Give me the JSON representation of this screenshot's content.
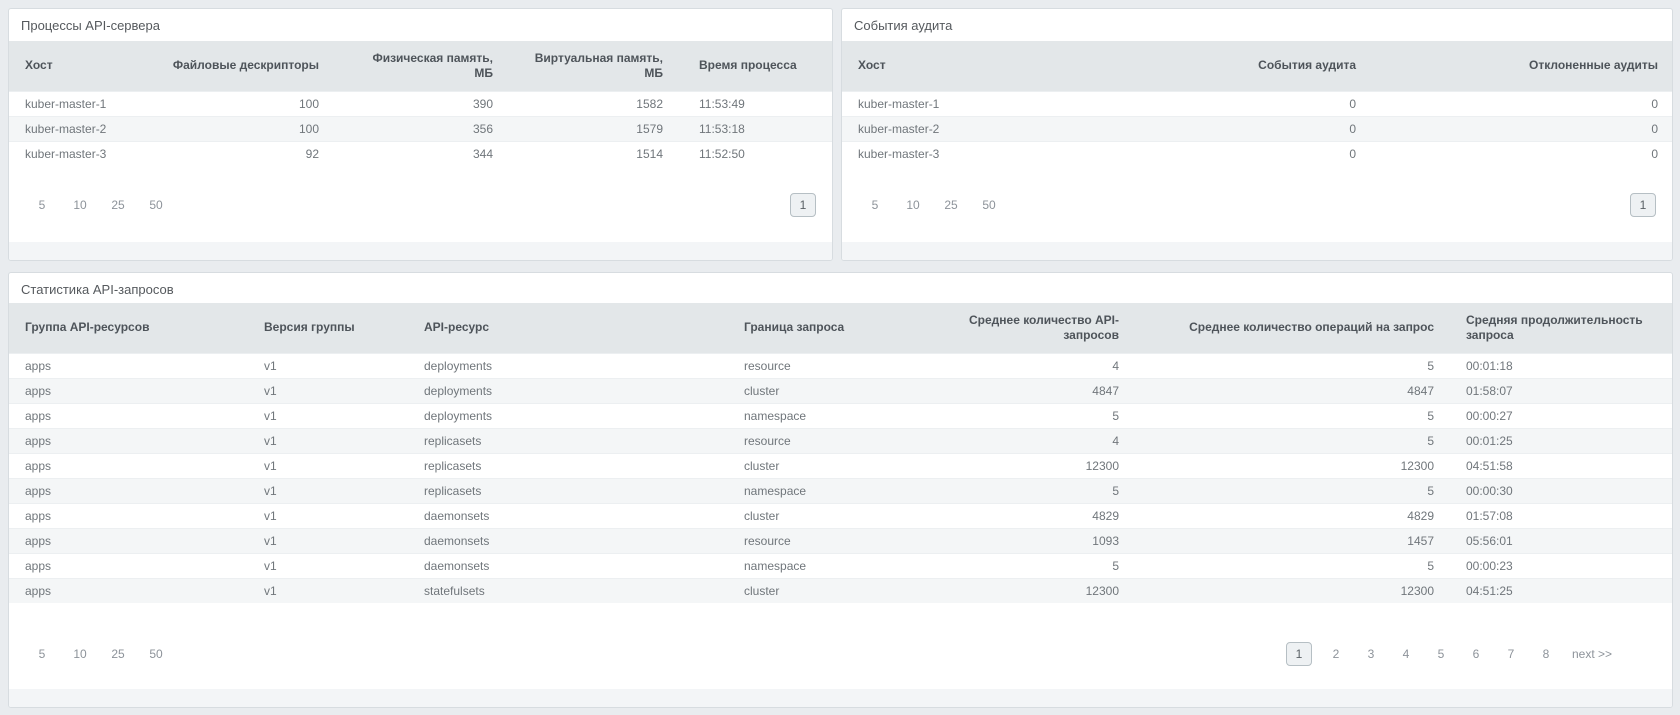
{
  "colors": {
    "page_background": "#e9ecef",
    "panel_background": "#ffffff",
    "panel_border": "#d7dce0",
    "table_header_background": "#e3e7e9",
    "row_stripe": "#f4f6f7",
    "header_text": "#4e545a",
    "cell_text": "#70767b",
    "muted_text": "#8d939a"
  },
  "panels": {
    "processes": {
      "title": "Процессы API-сервера",
      "columns": [
        "Хост",
        "Файловые дескрипторы",
        "Физическая память,\nМБ",
        "Виртуальная память,\nМБ",
        "Время процесса"
      ],
      "rows": [
        [
          "kuber-master-1",
          "100",
          "390",
          "1582",
          "11:53:49"
        ],
        [
          "kuber-master-2",
          "100",
          "356",
          "1579",
          "11:53:18"
        ],
        [
          "kuber-master-3",
          "92",
          "344",
          "1514",
          "11:52:50"
        ]
      ],
      "page_sizes": [
        "5",
        "10",
        "25",
        "50"
      ],
      "current_page": "1"
    },
    "audit": {
      "title": "События аудита",
      "columns": [
        "Хост",
        "События аудита",
        "Отклоненные аудиты"
      ],
      "rows": [
        [
          "kuber-master-1",
          "0",
          "0"
        ],
        [
          "kuber-master-2",
          "0",
          "0"
        ],
        [
          "kuber-master-3",
          "0",
          "0"
        ]
      ],
      "page_sizes": [
        "5",
        "10",
        "25",
        "50"
      ],
      "current_page": "1"
    },
    "api_stats": {
      "title": "Статистика API-запросов",
      "columns": [
        "Группа API-ресурсов",
        "Версия группы",
        "API-ресурс",
        "Граница запроса",
        "Среднее количество API-\nзапросов",
        "Среднее количество операций на запрос",
        "Средняя продолжительность\nзапроса"
      ],
      "rows": [
        [
          "apps",
          "v1",
          "deployments",
          "resource",
          "4",
          "5",
          "00:01:18"
        ],
        [
          "apps",
          "v1",
          "deployments",
          "cluster",
          "4847",
          "4847",
          "01:58:07"
        ],
        [
          "apps",
          "v1",
          "deployments",
          "namespace",
          "5",
          "5",
          "00:00:27"
        ],
        [
          "apps",
          "v1",
          "replicasets",
          "resource",
          "4",
          "5",
          "00:01:25"
        ],
        [
          "apps",
          "v1",
          "replicasets",
          "cluster",
          "12300",
          "12300",
          "04:51:58"
        ],
        [
          "apps",
          "v1",
          "replicasets",
          "namespace",
          "5",
          "5",
          "00:00:30"
        ],
        [
          "apps",
          "v1",
          "daemonsets",
          "cluster",
          "4829",
          "4829",
          "01:57:08"
        ],
        [
          "apps",
          "v1",
          "daemonsets",
          "resource",
          "1093",
          "1457",
          "05:56:01"
        ],
        [
          "apps",
          "v1",
          "daemonsets",
          "namespace",
          "5",
          "5",
          "00:00:23"
        ],
        [
          "apps",
          "v1",
          "statefulsets",
          "cluster",
          "12300",
          "12300",
          "04:51:25"
        ]
      ],
      "page_sizes": [
        "5",
        "10",
        "25",
        "50"
      ],
      "pages": [
        "1",
        "2",
        "3",
        "4",
        "5",
        "6",
        "7",
        "8"
      ],
      "current_page": "1",
      "next_label": "next >>"
    }
  }
}
